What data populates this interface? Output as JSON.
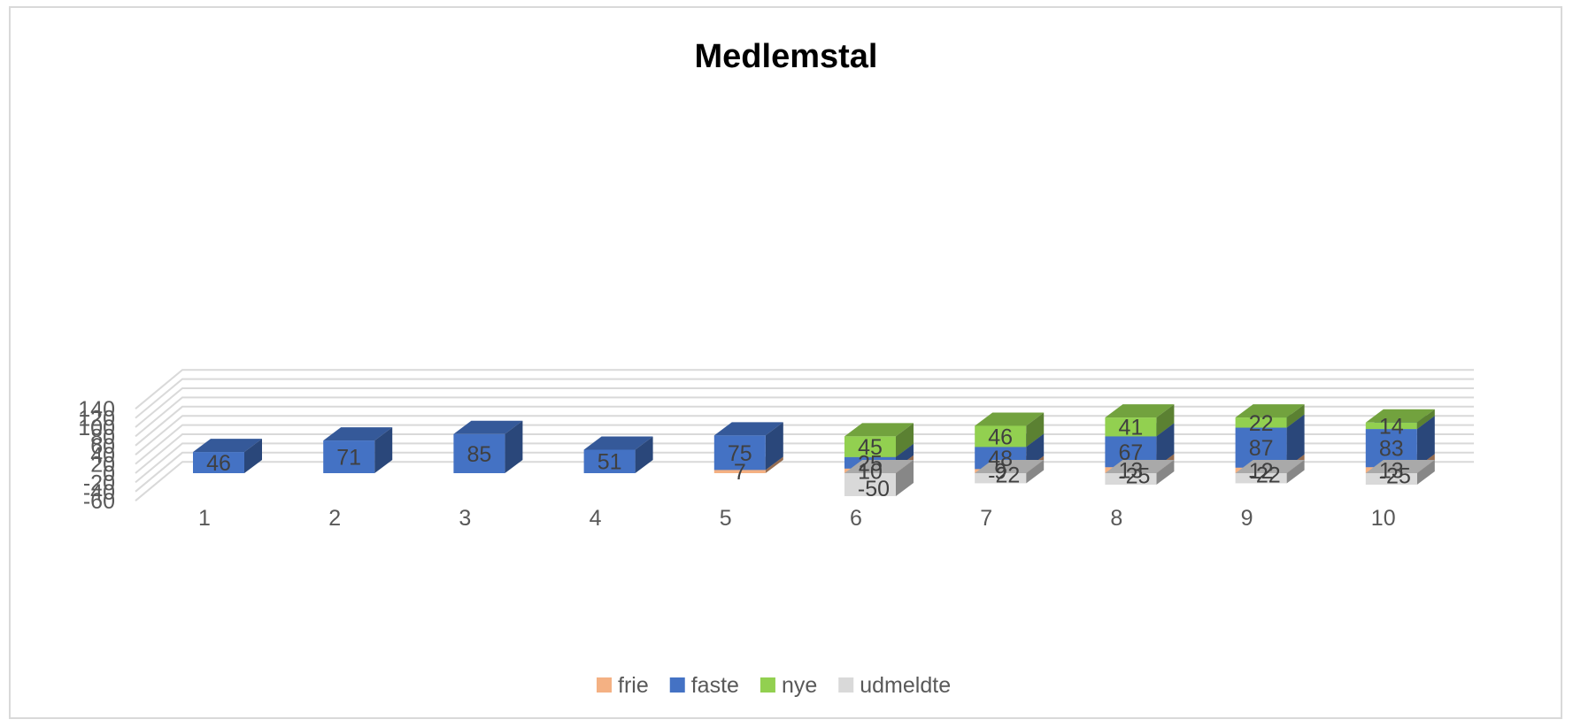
{
  "chart_data": {
    "type": "bar",
    "stacked": true,
    "three_d": true,
    "title": "Medlemstal",
    "categories": [
      "1",
      "2",
      "3",
      "4",
      "5",
      "6",
      "7",
      "8",
      "9",
      "10"
    ],
    "series": [
      {
        "name": "frie",
        "color": "#f4b183",
        "values": [
          null,
          null,
          null,
          null,
          7,
          10,
          9,
          13,
          12,
          13
        ]
      },
      {
        "name": "faste",
        "color": "#4472c4",
        "values": [
          46,
          71,
          85,
          51,
          75,
          25,
          48,
          67,
          87,
          83
        ]
      },
      {
        "name": "nye",
        "color": "#92d050",
        "values": [
          null,
          null,
          null,
          null,
          null,
          45,
          46,
          41,
          22,
          14
        ]
      },
      {
        "name": "udmeldte",
        "color": "#d9d9d9",
        "values": [
          null,
          null,
          null,
          null,
          null,
          -50,
          -22,
          -25,
          -22,
          -25
        ]
      }
    ],
    "yticks": [
      "140",
      "120",
      "100",
      "80",
      "60",
      "40",
      "20",
      "0",
      "-20",
      "-40",
      "-60"
    ],
    "ylim": [
      -60,
      140
    ],
    "grid": true,
    "legend_position": "bottom"
  }
}
